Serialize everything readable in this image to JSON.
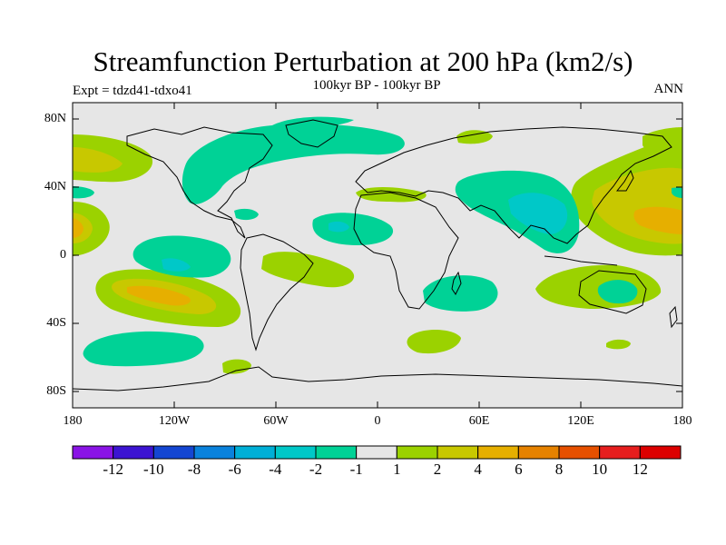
{
  "title": "Streamfunction Perturbation at 200 hPa (km2/s)",
  "subtitle": "100kyr BP - 100kyr BP",
  "experiment": "Expt = tdzd41-tdxo41",
  "season": "ANN",
  "axes": {
    "y_labels": [
      "80N",
      "40N",
      "0",
      "40S",
      "80S"
    ],
    "x_labels": [
      "180",
      "120W",
      "60W",
      "0",
      "60E",
      "120E",
      "180"
    ]
  },
  "colorbar": {
    "labels": [
      "-12",
      "-10",
      "-8",
      "-6",
      "-4",
      "-2",
      "-1",
      "1",
      "2",
      "4",
      "6",
      "8",
      "10",
      "12"
    ],
    "colors": [
      "#8a14e6",
      "#3c14d2",
      "#1446d2",
      "#0a82dc",
      "#00afd7",
      "#00c8c8",
      "#00d296",
      "#e6e6e6",
      "#9bd200",
      "#c8c800",
      "#e6af00",
      "#e68200",
      "#e65000",
      "#e61e1e",
      "#dc0000"
    ]
  },
  "colors": {
    "background_fill": "#e6e6e6",
    "pos_1_2": "#9bd200",
    "pos_2_4": "#c8c800",
    "pos_4_6": "#e6af00",
    "neg_1_2": "#00d296",
    "neg_2_4": "#00c8c8",
    "neg_4_6": "#00afd7"
  }
}
